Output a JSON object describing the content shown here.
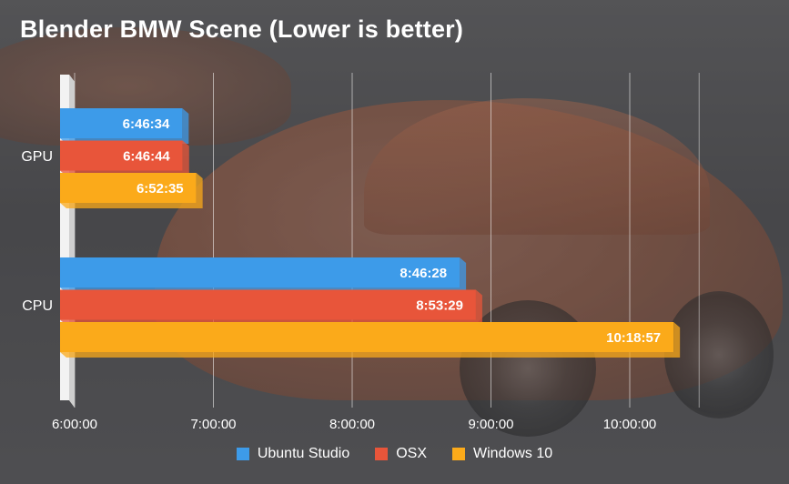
{
  "chart_data": {
    "type": "bar",
    "orientation": "horizontal",
    "title": "Blender BMW Scene (Lower is better)",
    "categories": [
      "GPU",
      "CPU"
    ],
    "series": [
      {
        "name": "Ubuntu Studio",
        "color": "#3d9be9",
        "values": [
          "6:46:34",
          "8:46:28"
        ],
        "seconds": [
          24394,
          31588
        ]
      },
      {
        "name": "OSX",
        "color": "#e8553a",
        "values": [
          "6:46:44",
          "8:53:29"
        ],
        "seconds": [
          24404,
          32009
        ]
      },
      {
        "name": "Windows 10",
        "color": "#fbaa1a",
        "values": [
          "6:52:35",
          "10:18:57"
        ],
        "seconds": [
          24755,
          37137
        ]
      }
    ],
    "xaxis": {
      "ticks": [
        "6:00:00",
        "7:00:00",
        "8:00:00",
        "9:00:00",
        "10:00:00"
      ],
      "tick_seconds": [
        21600,
        25200,
        28800,
        32400,
        36000
      ],
      "range_seconds": [
        21600,
        39600
      ]
    },
    "grid": true,
    "legend_position": "bottom"
  }
}
